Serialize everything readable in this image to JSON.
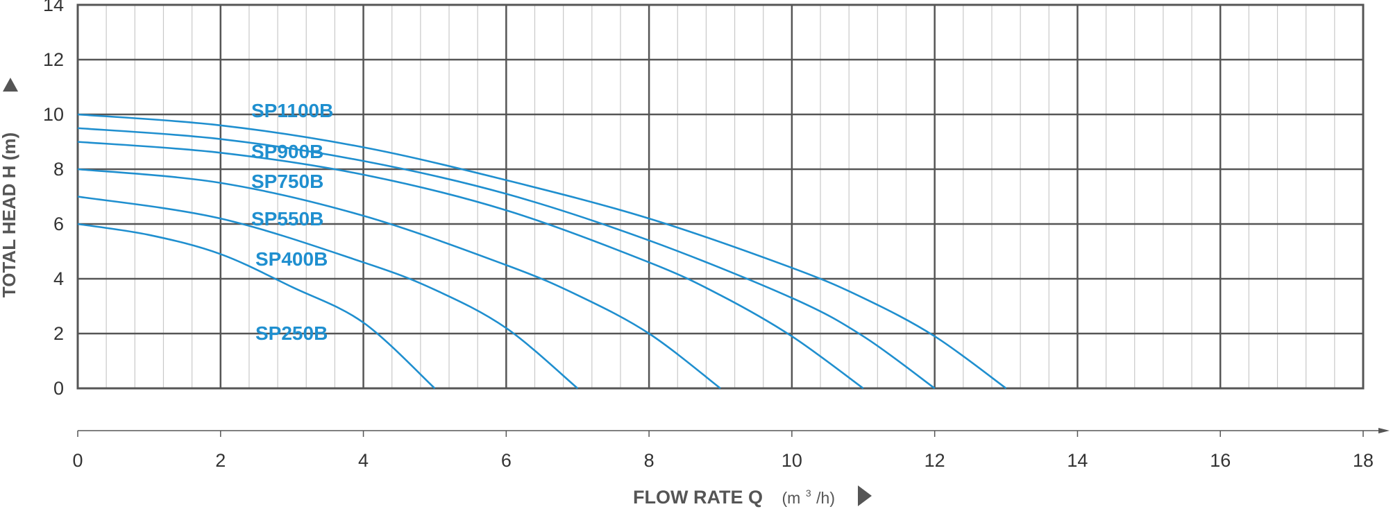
{
  "chart_data": {
    "type": "line",
    "ylabel": "TOTAL HEAD H (m)",
    "xlabel": "FLOW RATE Q",
    "xlabel_unit_prefix": "(m",
    "xlabel_unit_sup": "3",
    "xlabel_unit_suffix": "/h)",
    "xlim": [
      0,
      18
    ],
    "ylim": [
      0,
      14
    ],
    "y_ticks": [
      "0",
      "2",
      "4",
      "6",
      "8",
      "10",
      "12",
      "14"
    ],
    "x_ticks": [
      "0",
      "2",
      "4",
      "6",
      "8",
      "10",
      "12",
      "14",
      "16",
      "18"
    ],
    "grid": true,
    "series_color": "#1f8fcf",
    "series": [
      {
        "name": "SP1100B",
        "points": [
          [
            0,
            10
          ],
          [
            2,
            9.6
          ],
          [
            4,
            8.8
          ],
          [
            6,
            7.6
          ],
          [
            8,
            6.2
          ],
          [
            10,
            4.4
          ],
          [
            11,
            3.3
          ],
          [
            12,
            1.9
          ],
          [
            13,
            0
          ]
        ]
      },
      {
        "name": "SP900B",
        "points": [
          [
            0,
            9.5
          ],
          [
            2,
            9.1
          ],
          [
            4,
            8.3
          ],
          [
            6,
            7.1
          ],
          [
            8,
            5.4
          ],
          [
            10,
            3.3
          ],
          [
            11,
            1.9
          ],
          [
            12,
            0
          ]
        ]
      },
      {
        "name": "SP750B",
        "points": [
          [
            0,
            9
          ],
          [
            2,
            8.6
          ],
          [
            4,
            7.8
          ],
          [
            6,
            6.5
          ],
          [
            8,
            4.6
          ],
          [
            9,
            3.4
          ],
          [
            10,
            1.9
          ],
          [
            11,
            0
          ]
        ]
      },
      {
        "name": "SP550B",
        "points": [
          [
            0,
            8
          ],
          [
            2,
            7.5
          ],
          [
            4,
            6.3
          ],
          [
            6,
            4.5
          ],
          [
            7,
            3.4
          ],
          [
            8,
            2.0
          ],
          [
            9,
            0
          ]
        ]
      },
      {
        "name": "SP400B",
        "points": [
          [
            0,
            7
          ],
          [
            2,
            6.2
          ],
          [
            4,
            4.6
          ],
          [
            5,
            3.6
          ],
          [
            6,
            2.2
          ],
          [
            7,
            0
          ]
        ]
      },
      {
        "name": "SP250B",
        "points": [
          [
            0,
            6
          ],
          [
            1,
            5.6
          ],
          [
            2,
            4.9
          ],
          [
            3,
            3.7
          ],
          [
            4,
            2.4
          ],
          [
            5,
            0
          ]
        ]
      }
    ]
  }
}
